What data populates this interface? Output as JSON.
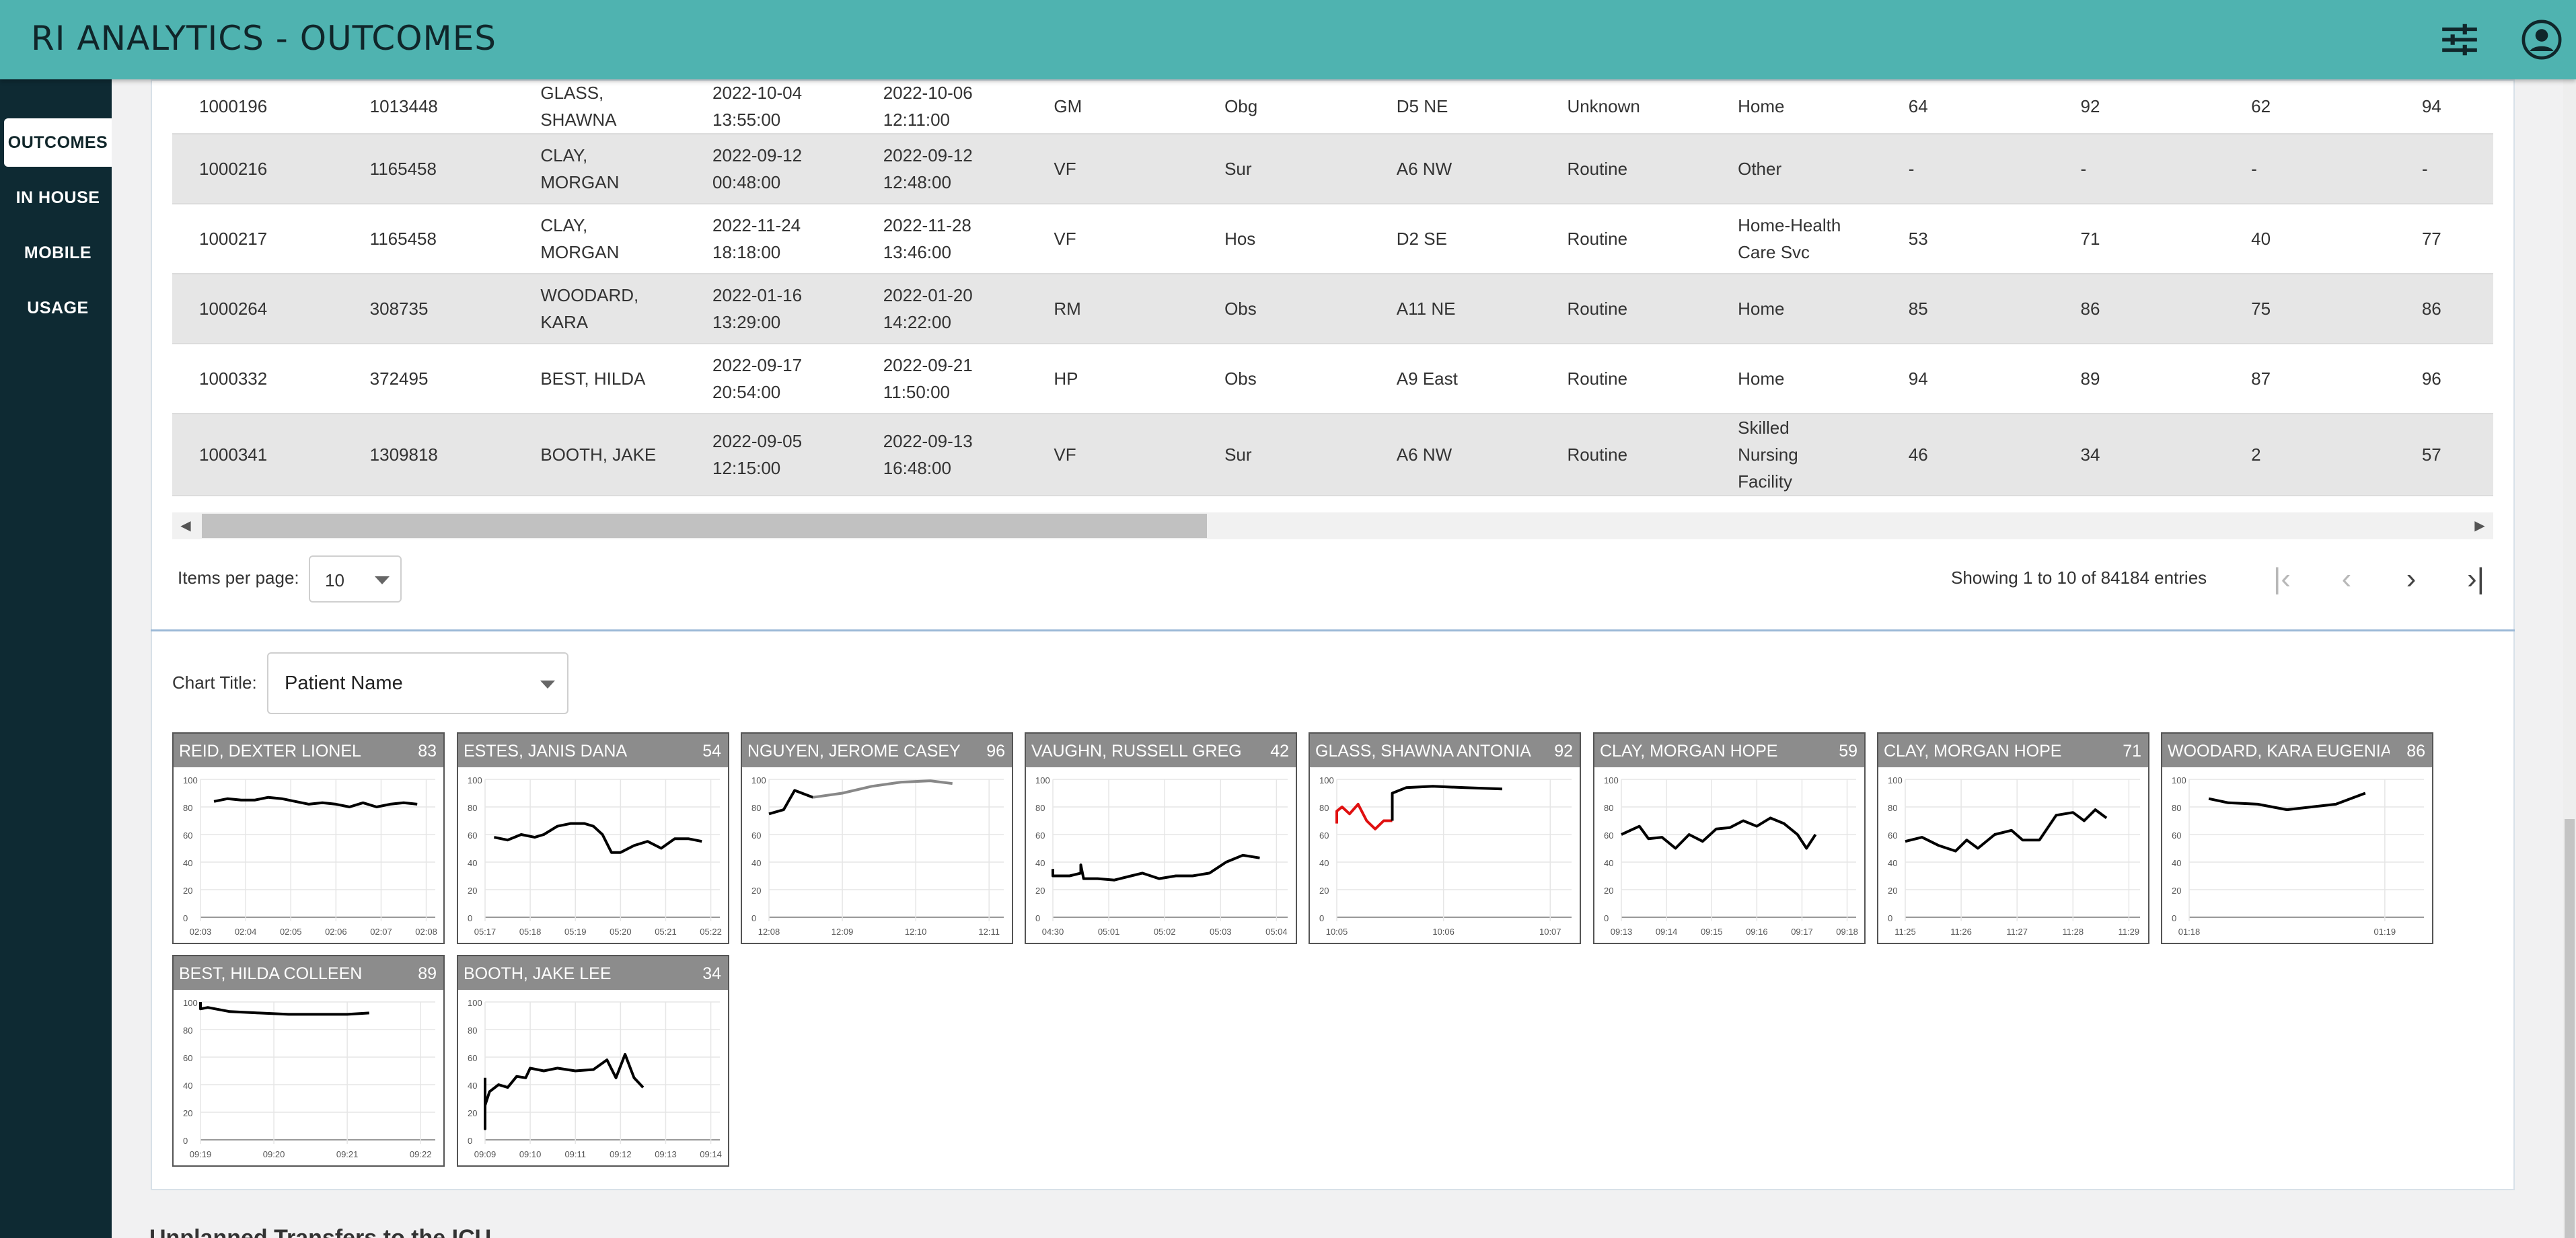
{
  "header": {
    "title": "RI ANALYTICS - OUTCOMES",
    "icons": [
      "sliders-icon",
      "account-icon"
    ]
  },
  "sidebar": {
    "items": [
      {
        "label": "OUTCOMES",
        "active": true
      },
      {
        "label": "IN HOUSE"
      },
      {
        "label": "MOBILE"
      },
      {
        "label": "USAGE"
      }
    ]
  },
  "table": {
    "rows": [
      {
        "cells": [
          "1000196",
          "1013448",
          "GLASS,\nSHAWNA",
          "2022-10-04\n13:55:00",
          "2022-10-06\n12:11:00",
          "GM",
          "Obg",
          "D5 NE",
          "Unknown",
          "Home",
          "64",
          "92",
          "62",
          "94"
        ]
      },
      {
        "cells": [
          "1000216",
          "1165458",
          "CLAY,\nMORGAN",
          "2022-09-12\n00:48:00",
          "2022-09-12\n12:48:00",
          "VF",
          "Sur",
          "A6 NW",
          "Routine",
          "Other",
          "-",
          "-",
          "-",
          "-"
        ]
      },
      {
        "cells": [
          "1000217",
          "1165458",
          "CLAY,\nMORGAN",
          "2022-11-24\n18:18:00",
          "2022-11-28\n13:46:00",
          "VF",
          "Hos",
          "D2 SE",
          "Routine",
          "Home-Health\nCare Svc",
          "53",
          "71",
          "40",
          "77"
        ]
      },
      {
        "cells": [
          "1000264",
          "308735",
          "WOODARD,\nKARA",
          "2022-01-16\n13:29:00",
          "2022-01-20\n14:22:00",
          "RM",
          "Obs",
          "A11 NE",
          "Routine",
          "Home",
          "85",
          "86",
          "75",
          "86"
        ]
      },
      {
        "cells": [
          "1000332",
          "372495",
          "BEST, HILDA",
          "2022-09-17\n20:54:00",
          "2022-09-21\n11:50:00",
          "HP",
          "Obs",
          "A9 East",
          "Routine",
          "Home",
          "94",
          "89",
          "87",
          "96"
        ]
      },
      {
        "cells": [
          "1000341",
          "1309818",
          "BOOTH, JAKE",
          "2022-09-05\n12:15:00",
          "2022-09-13\n16:48:00",
          "VF",
          "Sur",
          "A6 NW",
          "Routine",
          "Skilled\nNursing\nFacility",
          "46",
          "34",
          "2",
          "57"
        ]
      }
    ]
  },
  "pagination": {
    "items_per_page_label": "Items per page:",
    "items_per_page": "10",
    "showing": "Showing 1 to 10 of 84184 entries"
  },
  "chart_title": {
    "label": "Chart Title:",
    "value": "Patient Name"
  },
  "chart_data": [
    {
      "type": "line",
      "title": "REID, DEXTER LIONEL",
      "score": "83",
      "ylim": [
        0,
        100
      ],
      "yticks": [
        "100",
        "80",
        "60",
        "40",
        "20",
        "0"
      ],
      "xticks": [
        "02:03",
        "02:04",
        "02:05",
        "02:06",
        "02:07",
        "02:08"
      ],
      "series": [
        {
          "color": "#000000",
          "points": [
            [
              0.3,
              84
            ],
            [
              0.6,
              86
            ],
            [
              0.9,
              85
            ],
            [
              1.2,
              85
            ],
            [
              1.5,
              87
            ],
            [
              1.8,
              86
            ],
            [
              2.1,
              84
            ],
            [
              2.4,
              82
            ],
            [
              2.7,
              83
            ],
            [
              3.0,
              82
            ],
            [
              3.3,
              80
            ],
            [
              3.6,
              83
            ],
            [
              3.9,
              80
            ],
            [
              4.2,
              82
            ],
            [
              4.5,
              83
            ],
            [
              4.8,
              82
            ]
          ]
        }
      ]
    },
    {
      "type": "line",
      "title": "ESTES, JANIS DANA",
      "score": "54",
      "ylim": [
        0,
        100
      ],
      "yticks": [
        "100",
        "80",
        "60",
        "40",
        "20",
        "0"
      ],
      "xticks": [
        "05:17",
        "05:18",
        "05:19",
        "05:20",
        "05:21",
        "05:22"
      ],
      "series": [
        {
          "color": "#000000",
          "points": [
            [
              0.2,
              58
            ],
            [
              0.5,
              56
            ],
            [
              0.8,
              60
            ],
            [
              1.1,
              58
            ],
            [
              1.3,
              60
            ],
            [
              1.6,
              66
            ],
            [
              1.9,
              68
            ],
            [
              2.2,
              68
            ],
            [
              2.4,
              66
            ],
            [
              2.6,
              60
            ],
            [
              2.8,
              47
            ],
            [
              3.0,
              47
            ],
            [
              3.3,
              52
            ],
            [
              3.6,
              55
            ],
            [
              3.9,
              50
            ],
            [
              4.2,
              57
            ],
            [
              4.5,
              57
            ],
            [
              4.8,
              55
            ]
          ]
        }
      ]
    },
    {
      "type": "line",
      "title": "NGUYEN, JEROME CASEY",
      "score": "96",
      "ylim": [
        0,
        100
      ],
      "yticks": [
        "100",
        "80",
        "60",
        "40",
        "20",
        "0"
      ],
      "xticks": [
        "12:08",
        "12:09",
        "12:10",
        "12:11"
      ],
      "series": [
        {
          "color": "#000000",
          "points": [
            [
              -0.05,
              75
            ],
            [
              0.2,
              78
            ],
            [
              0.35,
              92
            ],
            [
              0.6,
              87
            ]
          ]
        },
        {
          "color": "#888888",
          "points": [
            [
              0.6,
              87
            ],
            [
              1.0,
              90
            ],
            [
              1.4,
              95
            ],
            [
              1.8,
              98
            ],
            [
              2.2,
              99
            ],
            [
              2.5,
              97
            ]
          ]
        }
      ]
    },
    {
      "type": "line",
      "title": "VAUGHN, RUSSELL GREG",
      "score": "42",
      "ylim": [
        0,
        100
      ],
      "yticks": [
        "100",
        "80",
        "60",
        "40",
        "20",
        "0"
      ],
      "xticks": [
        "04:30",
        "05:01",
        "05:02",
        "05:03",
        "05:04"
      ],
      "series": [
        {
          "color": "#000000",
          "points": [
            [
              -0.2,
              35
            ],
            [
              0.0,
              30
            ],
            [
              0.3,
              30
            ],
            [
              0.5,
              32
            ],
            [
              0.5,
              38
            ],
            [
              0.55,
              28
            ],
            [
              0.8,
              28
            ],
            [
              1.1,
              27
            ],
            [
              1.4,
              30
            ],
            [
              1.6,
              32
            ],
            [
              1.9,
              28
            ],
            [
              2.2,
              30
            ],
            [
              2.5,
              30
            ],
            [
              2.8,
              32
            ],
            [
              3.1,
              40
            ],
            [
              3.4,
              45
            ],
            [
              3.7,
              43
            ]
          ]
        }
      ]
    },
    {
      "type": "line",
      "title": "GLASS, SHAWNA ANTONIA",
      "score": "92",
      "ylim": [
        0,
        100
      ],
      "yticks": [
        "100",
        "80",
        "60",
        "40",
        "20",
        "0"
      ],
      "xticks": [
        "10:05",
        "10:06",
        "10:07"
      ],
      "series": [
        {
          "color": "#e01010",
          "points": [
            [
              -0.05,
              68
            ],
            [
              -0.02,
              77
            ],
            [
              0.05,
              80
            ],
            [
              0.12,
              75
            ],
            [
              0.2,
              82
            ],
            [
              0.28,
              70
            ],
            [
              0.36,
              64
            ],
            [
              0.44,
              70
            ],
            [
              0.52,
              70
            ]
          ]
        },
        {
          "color": "#000000",
          "points": [
            [
              0.52,
              70
            ],
            [
              0.52,
              90
            ],
            [
              0.65,
              94
            ],
            [
              0.9,
              95
            ],
            [
              1.2,
              94
            ],
            [
              1.55,
              93
            ]
          ]
        }
      ]
    },
    {
      "type": "line",
      "title": "CLAY, MORGAN HOPE",
      "score": "59",
      "ylim": [
        0,
        100
      ],
      "yticks": [
        "100",
        "80",
        "60",
        "40",
        "20",
        "0"
      ],
      "xticks": [
        "09:13",
        "09:14",
        "09:15",
        "09:16",
        "09:17",
        "09:18"
      ],
      "series": [
        {
          "color": "#000000",
          "points": [
            [
              0.0,
              60
            ],
            [
              0.2,
              63
            ],
            [
              0.4,
              66
            ],
            [
              0.6,
              57
            ],
            [
              0.9,
              58
            ],
            [
              1.2,
              50
            ],
            [
              1.5,
              60
            ],
            [
              1.8,
              55
            ],
            [
              2.1,
              64
            ],
            [
              2.4,
              65
            ],
            [
              2.7,
              70
            ],
            [
              3.0,
              66
            ],
            [
              3.3,
              72
            ],
            [
              3.6,
              68
            ],
            [
              3.9,
              60
            ],
            [
              4.1,
              50
            ],
            [
              4.3,
              60
            ]
          ]
        }
      ]
    },
    {
      "type": "line",
      "title": "CLAY, MORGAN HOPE",
      "score": "71",
      "ylim": [
        0,
        100
      ],
      "yticks": [
        "100",
        "80",
        "60",
        "40",
        "20",
        "0"
      ],
      "xticks": [
        "11:25",
        "11:26",
        "11:27",
        "11:28",
        "11:29"
      ],
      "series": [
        {
          "color": "#000000",
          "points": [
            [
              0.0,
              55
            ],
            [
              0.3,
              58
            ],
            [
              0.6,
              52
            ],
            [
              0.9,
              48
            ],
            [
              1.1,
              56
            ],
            [
              1.3,
              50
            ],
            [
              1.6,
              60
            ],
            [
              1.9,
              63
            ],
            [
              2.1,
              56
            ],
            [
              2.4,
              56
            ],
            [
              2.7,
              74
            ],
            [
              3.0,
              76
            ],
            [
              3.2,
              70
            ],
            [
              3.4,
              78
            ],
            [
              3.6,
              72
            ]
          ]
        }
      ]
    },
    {
      "type": "line",
      "title": "WOODARD, KARA EUGENIA",
      "score": "86",
      "ylim": [
        0,
        100
      ],
      "yticks": [
        "100",
        "80",
        "60",
        "40",
        "20",
        "0"
      ],
      "xticks": [
        "01:18",
        "01:19"
      ],
      "series": [
        {
          "color": "#000000",
          "points": [
            [
              0.1,
              86
            ],
            [
              0.2,
              83
            ],
            [
              0.35,
              82
            ],
            [
              0.5,
              78
            ],
            [
              0.75,
              82
            ],
            [
              0.9,
              90
            ]
          ]
        }
      ]
    },
    {
      "type": "line",
      "title": "BEST, HILDA COLLEEN",
      "score": "89",
      "ylim": [
        0,
        100
      ],
      "yticks": [
        "100",
        "80",
        "60",
        "40",
        "20",
        "0"
      ],
      "xticks": [
        "09:19",
        "09:20",
        "09:21",
        "09:22"
      ],
      "series": [
        {
          "color": "#000000",
          "points": [
            [
              -0.5,
              100
            ],
            [
              -0.45,
              96
            ],
            [
              -0.2,
              95
            ],
            [
              0.1,
              96
            ],
            [
              0.4,
              93
            ],
            [
              0.8,
              92
            ],
            [
              1.2,
              91
            ],
            [
              1.6,
              91
            ],
            [
              2.0,
              91
            ],
            [
              2.3,
              92
            ]
          ]
        }
      ]
    },
    {
      "type": "line",
      "title": "BOOTH, JAKE LEE",
      "score": "34",
      "ylim": [
        0,
        100
      ],
      "yticks": [
        "100",
        "80",
        "60",
        "40",
        "20",
        "0"
      ],
      "xticks": [
        "09:09",
        "09:10",
        "09:11",
        "09:12",
        "09:13",
        "09:14"
      ],
      "series": [
        {
          "color": "#000000",
          "points": [
            [
              -0.5,
              45
            ],
            [
              -0.45,
              20
            ],
            [
              -0.35,
              10
            ],
            [
              -0.3,
              22
            ],
            [
              -0.2,
              8
            ],
            [
              -0.05,
              25
            ],
            [
              0.1,
              35
            ],
            [
              0.3,
              40
            ],
            [
              0.5,
              38
            ],
            [
              0.7,
              46
            ],
            [
              0.9,
              45
            ],
            [
              1.0,
              52
            ],
            [
              1.3,
              50
            ],
            [
              1.6,
              52
            ],
            [
              2.0,
              50
            ],
            [
              2.4,
              51
            ],
            [
              2.7,
              58
            ],
            [
              2.9,
              45
            ],
            [
              3.1,
              62
            ],
            [
              3.3,
              45
            ],
            [
              3.5,
              38
            ]
          ]
        }
      ]
    }
  ],
  "footer": {
    "section_title": "Unplanned Transfers to the ICU"
  }
}
